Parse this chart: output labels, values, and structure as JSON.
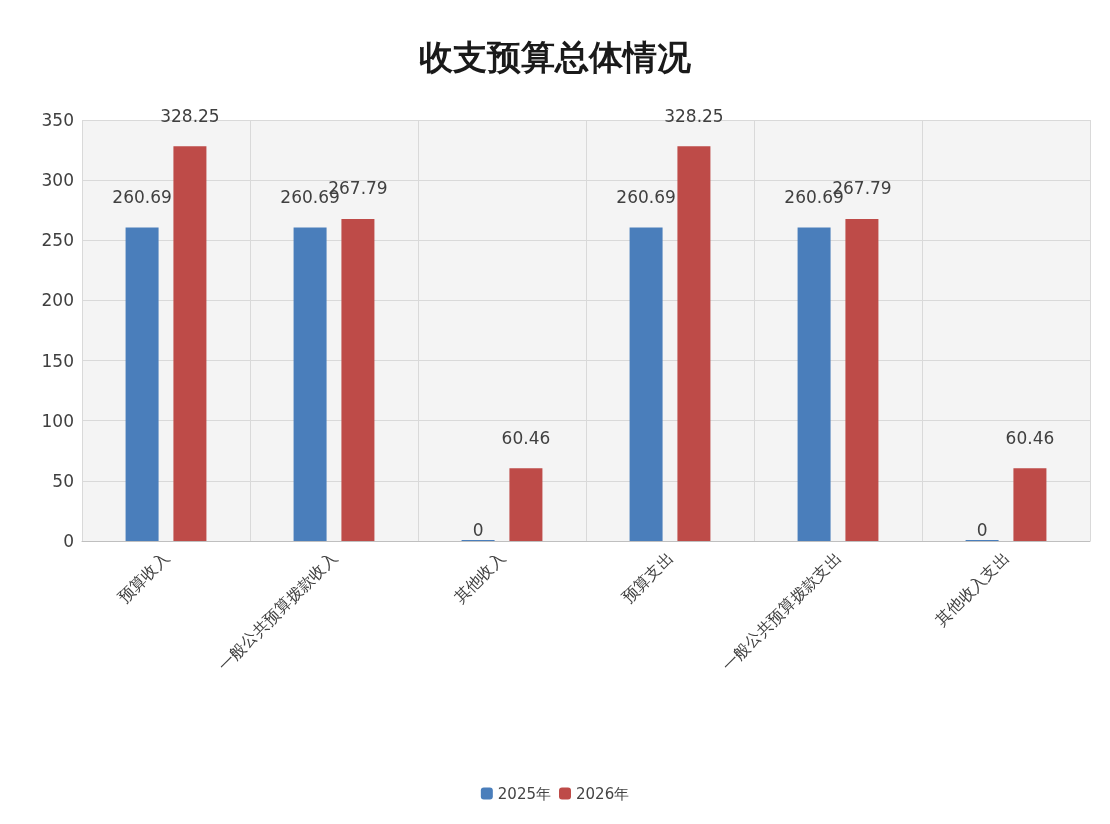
{
  "chart_data": {
    "type": "bar",
    "title": "收支预算总体情况",
    "categories": [
      "预算收入",
      "一般公共预算拨款收入",
      "其他收入",
      "预算支出",
      "一般公共预算拨款支出",
      "其他收入支出"
    ],
    "series": [
      {
        "name": "2025年",
        "color": "#4a7ebb",
        "values": [
          260.69,
          260.69,
          0,
          260.69,
          260.69,
          0
        ]
      },
      {
        "name": "2026年",
        "color": "#be4b48",
        "values": [
          328.25,
          267.79,
          60.46,
          328.25,
          267.79,
          60.46
        ]
      }
    ],
    "ylim": [
      0,
      350
    ],
    "yticks": [
      0,
      50,
      100,
      150,
      200,
      250,
      300,
      350
    ],
    "grid": true,
    "legend": "bottom",
    "data_labels": true
  }
}
